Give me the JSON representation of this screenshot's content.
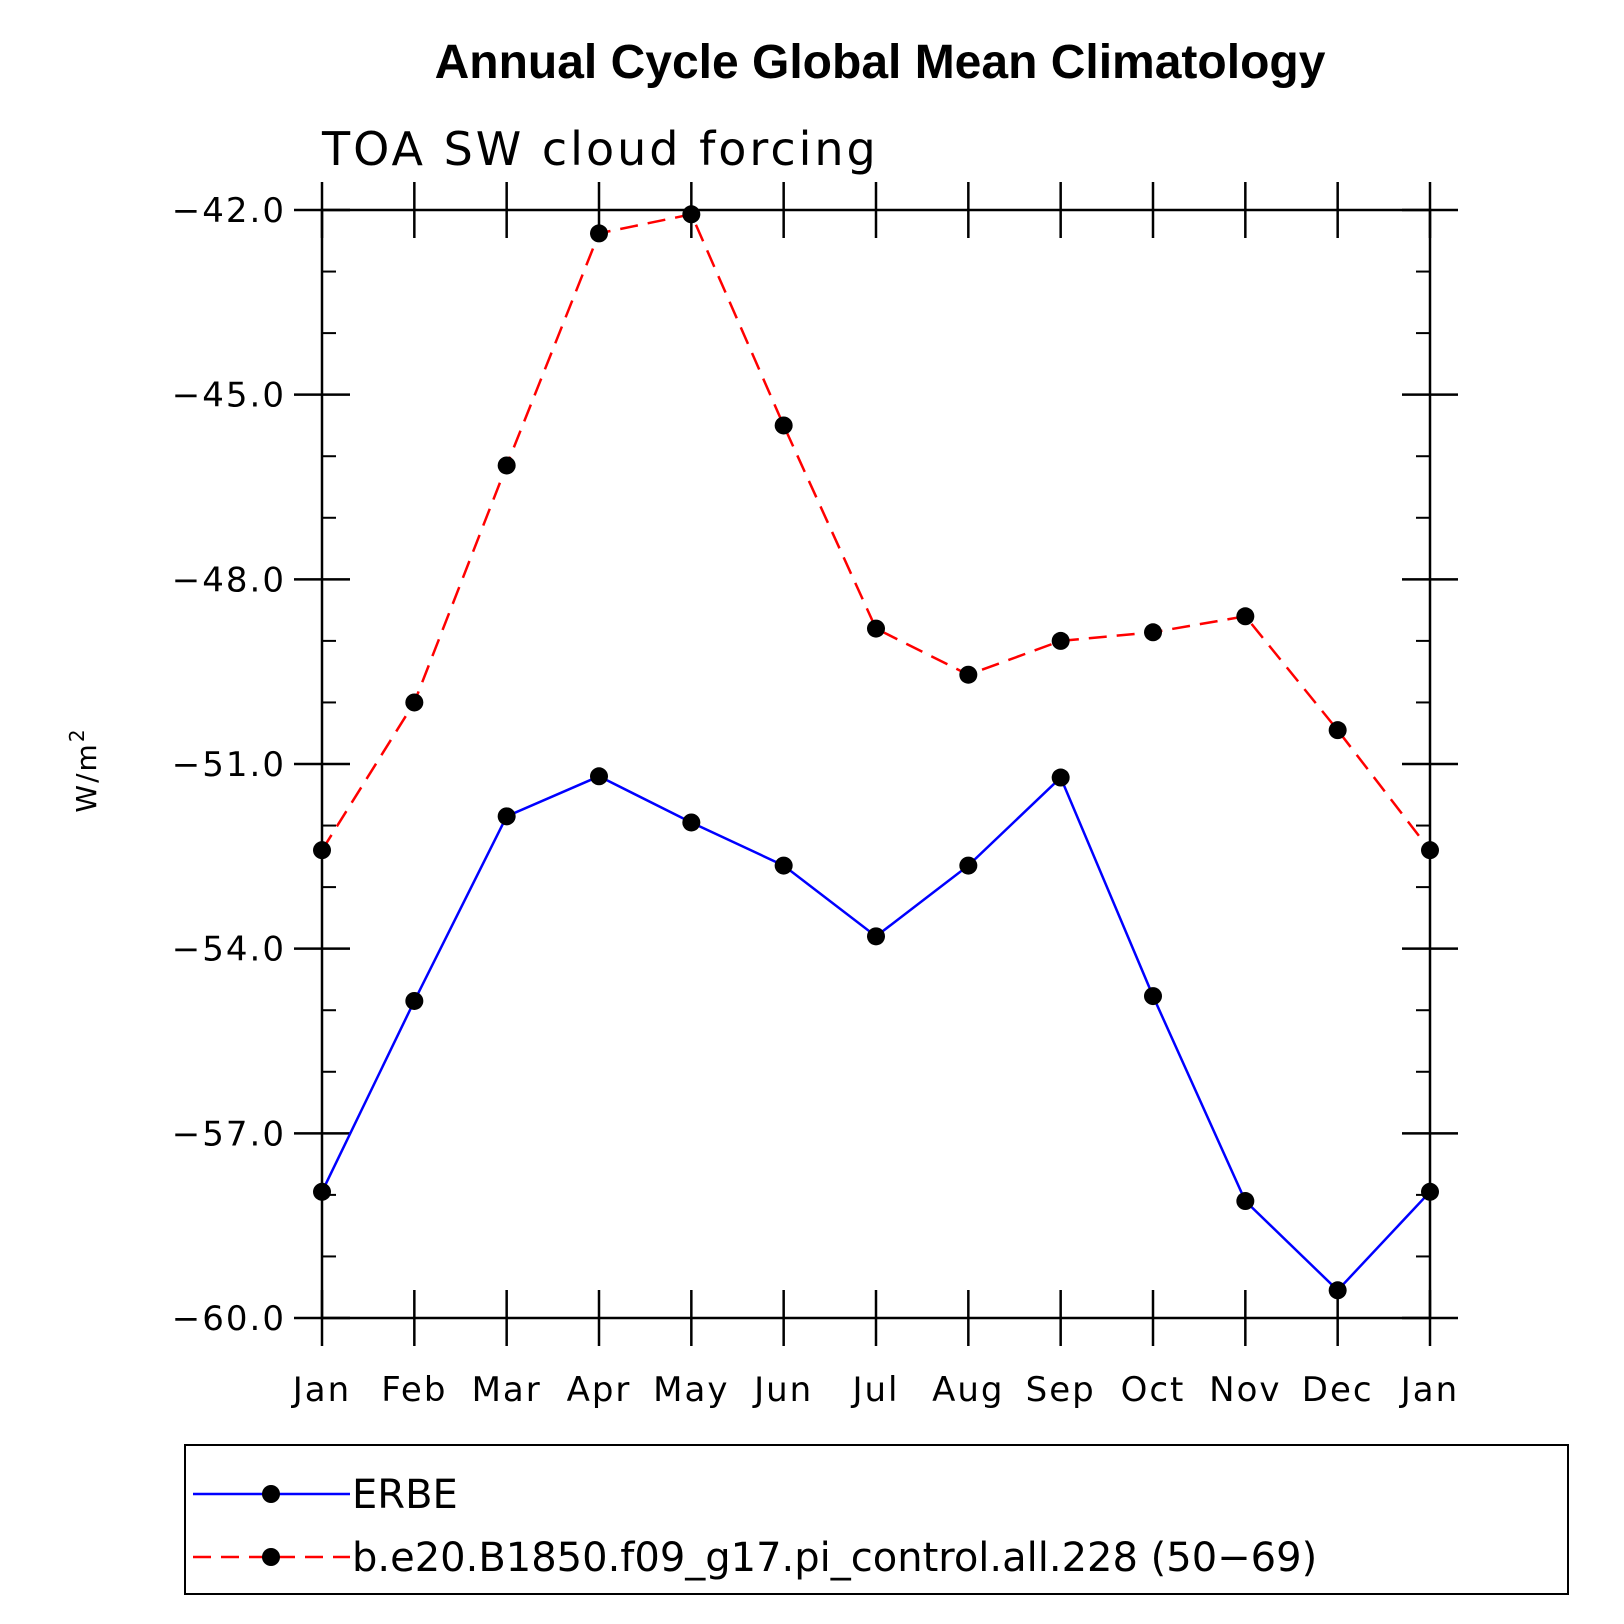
{
  "chart_data": {
    "type": "line",
    "title": "Annual Cycle Global Mean Climatology",
    "subtitle": "TOA SW cloud forcing",
    "xlabel": "",
    "ylabel": "W/m",
    "ylabel_superscript": "2",
    "categories": [
      "Jan",
      "Feb",
      "Mar",
      "Apr",
      "May",
      "Jun",
      "Jul",
      "Aug",
      "Sep",
      "Oct",
      "Nov",
      "Dec",
      "Jan"
    ],
    "ylim": [
      -60.0,
      -42.0
    ],
    "yticks": [
      -42.0,
      -45.0,
      -48.0,
      -51.0,
      -54.0,
      -57.0,
      -60.0
    ],
    "ytick_labels": [
      "−42.0",
      "−45.0",
      "−48.0",
      "−51.0",
      "−54.0",
      "−57.0",
      "−60.0"
    ],
    "yminor_step": 1.0,
    "grid": false,
    "legend_position": "bottom",
    "series": [
      {
        "name": "ERBE",
        "color": "#0000ff",
        "dash": "solid",
        "marker": "filled-circle",
        "values": [
          -57.95,
          -54.85,
          -51.85,
          -51.2,
          -51.95,
          -52.65,
          -53.8,
          -52.65,
          -51.22,
          -54.77,
          -58.1,
          -59.55,
          -57.95
        ]
      },
      {
        "name": "b.e20.B1850.f09_g17.pi_control.all.228 (50−69)",
        "color": "#ff0000",
        "dash": "dashed",
        "marker": "filled-circle",
        "values": [
          -52.4,
          -50.0,
          -46.15,
          -42.38,
          -42.07,
          -45.5,
          -48.8,
          -49.55,
          -49.0,
          -48.86,
          -48.6,
          -50.45,
          -52.4
        ]
      }
    ]
  }
}
